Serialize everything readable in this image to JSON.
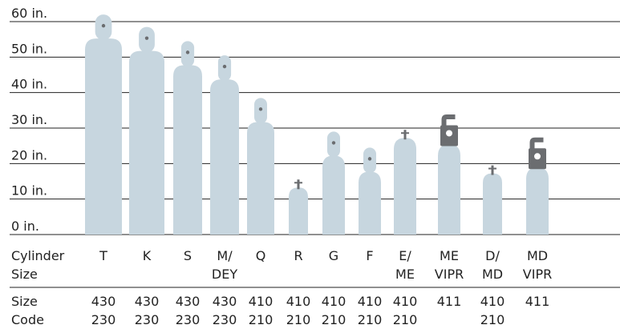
{
  "chart_data": {
    "type": "cylinder",
    "categories": [
      [
        "T"
      ],
      [
        "K"
      ],
      [
        "S"
      ],
      [
        "M/",
        "DEY"
      ],
      [
        "Q"
      ],
      [
        "R"
      ],
      [
        "G"
      ],
      [
        "F"
      ],
      [
        "E/",
        "ME"
      ],
      [
        "ME",
        "VIPR"
      ],
      [
        "D/",
        "MD"
      ],
      [
        "MD",
        "VIPR"
      ]
    ],
    "values": [
      62,
      58.5,
      54.5,
      50.5,
      38.5,
      15.5,
      29,
      24.5,
      29.5,
      33.5,
      19.5,
      27
    ],
    "size_codes": [
      [
        "430",
        "230"
      ],
      [
        "430",
        "230"
      ],
      [
        "430",
        "230"
      ],
      [
        "430",
        "230"
      ],
      [
        "410",
        "210"
      ],
      [
        "410",
        "210"
      ],
      [
        "410",
        "210"
      ],
      [
        "410",
        "210"
      ],
      [
        "410",
        "210"
      ],
      [
        "411"
      ],
      [
        "410",
        "210"
      ],
      [
        "411"
      ]
    ],
    "valve_styles": [
      "cap",
      "cap",
      "cap",
      "cap",
      "cap",
      "post",
      "cap",
      "cap",
      "post",
      "vipr",
      "post",
      "vipr"
    ],
    "row_labels": [
      [
        "Cylinder",
        "Size"
      ],
      [
        "Size",
        "Code"
      ]
    ],
    "color": "#c7d6df",
    "valve_color": "#6b6d70",
    "ylim": [
      0,
      60
    ],
    "yticks": [
      {
        "value": 0,
        "label": "0 in."
      },
      {
        "value": 10,
        "label": "10 in."
      },
      {
        "value": 20,
        "label": "20 in."
      },
      {
        "value": 30,
        "label": "30 in."
      },
      {
        "value": 40,
        "label": "40 in."
      },
      {
        "value": 50,
        "label": "50 in."
      },
      {
        "value": 60,
        "label": "60 in."
      }
    ],
    "grid": true
  }
}
